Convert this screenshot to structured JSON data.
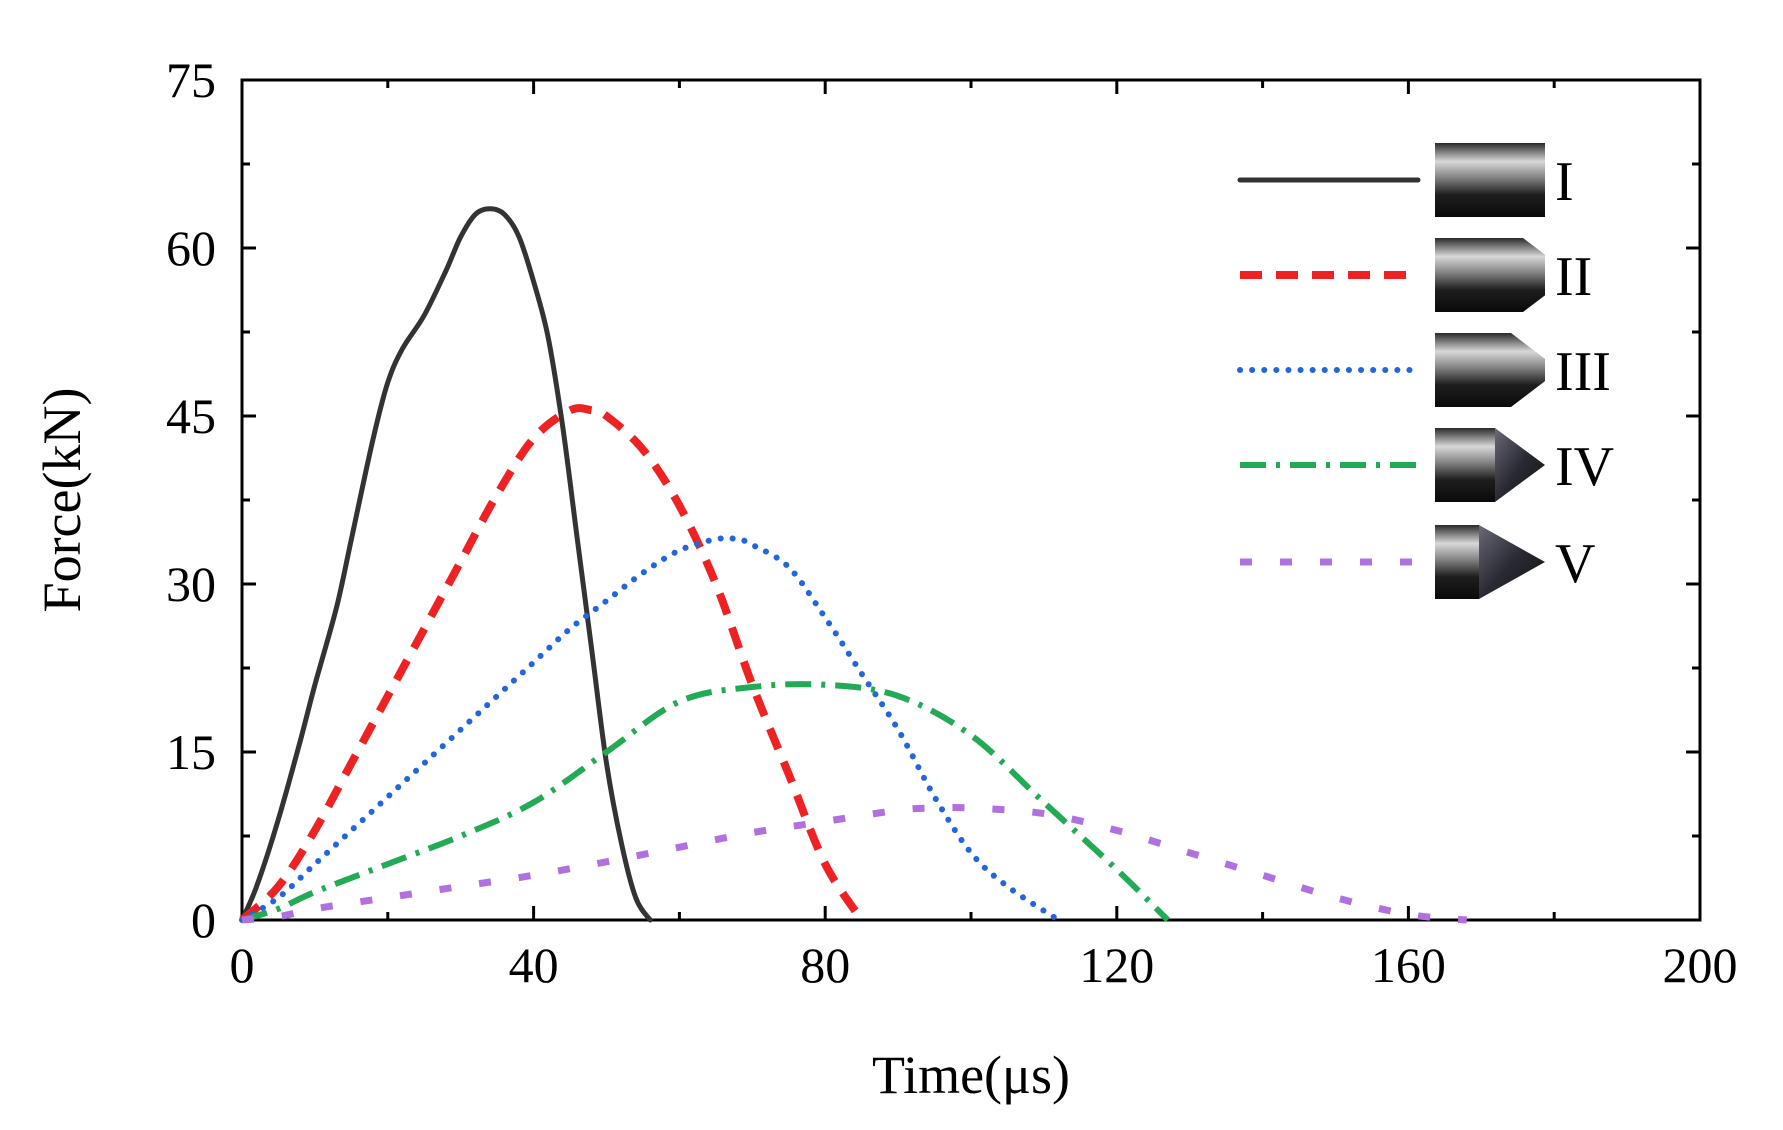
{
  "chart_data": {
    "type": "line",
    "title": "",
    "xlabel": "Time(μs)",
    "ylabel": "Force(kN)",
    "xlim": [
      0,
      200
    ],
    "ylim": [
      0,
      75
    ],
    "xticks": [
      0,
      40,
      80,
      120,
      160,
      200
    ],
    "yticks": [
      0,
      15,
      30,
      45,
      60,
      75
    ],
    "xticklabels": [
      "0",
      "40",
      "80",
      "120",
      "160",
      "200"
    ],
    "yticklabels": [
      "0",
      "15",
      "30",
      "45",
      "60",
      "75"
    ],
    "grid": false,
    "legend_position": "top-right",
    "series": [
      {
        "name": "I",
        "color": "#333333",
        "style": "solid",
        "icon": "flat-nose-projectile-icon",
        "x": [
          0,
          2,
          5,
          8,
          10,
          13,
          15,
          18,
          20,
          22,
          25,
          28,
          30,
          32,
          34,
          36,
          38,
          40,
          42,
          44,
          46,
          48,
          50,
          52,
          54,
          56
        ],
        "y": [
          0,
          3,
          9,
          16,
          21,
          28,
          34,
          43,
          48,
          51,
          54,
          58,
          61,
          63,
          63.5,
          63,
          61,
          57,
          52,
          44,
          34,
          24,
          14,
          7,
          2,
          0
        ]
      },
      {
        "name": "II",
        "color": "#ee2222",
        "style": "dashed",
        "icon": "blunt-cone-projectile-icon",
        "x": [
          0,
          5,
          10,
          15,
          20,
          25,
          30,
          35,
          40,
          45,
          48,
          50,
          55,
          60,
          65,
          70,
          75,
          80,
          85
        ],
        "y": [
          0,
          3,
          8,
          14,
          20,
          26,
          32,
          38,
          43,
          45.5,
          45.5,
          45,
          42,
          37,
          30,
          21,
          13,
          5,
          0
        ]
      },
      {
        "name": "III",
        "color": "#2266dd",
        "style": "dotted",
        "icon": "short-cone-projectile-icon",
        "x": [
          0,
          5,
          10,
          15,
          20,
          25,
          30,
          35,
          40,
          45,
          50,
          55,
          60,
          65,
          68,
          70,
          75,
          80,
          85,
          90,
          95,
          100,
          105,
          112
        ],
        "y": [
          0,
          2,
          5,
          8,
          11,
          14,
          17,
          20,
          23,
          26,
          28.5,
          31,
          33,
          34,
          34,
          33.5,
          31.5,
          27,
          22,
          17,
          11,
          6,
          3,
          0
        ]
      },
      {
        "name": "IV",
        "color": "#22aa55",
        "style": "dashdot",
        "icon": "long-cone-projectile-icon",
        "x": [
          0,
          5,
          10,
          20,
          30,
          40,
          50,
          60,
          70,
          80,
          90,
          100,
          110,
          120,
          127
        ],
        "y": [
          0,
          1,
          2.5,
          5,
          7.5,
          10.5,
          15,
          19.5,
          20.8,
          21,
          20,
          16.5,
          10.5,
          4.5,
          0
        ]
      },
      {
        "name": "V",
        "color": "#b070e0",
        "style": "dashed-short",
        "icon": "pointed-cone-projectile-icon",
        "x": [
          0,
          5,
          10,
          20,
          30,
          40,
          50,
          60,
          70,
          80,
          90,
          95,
          100,
          110,
          120,
          130,
          140,
          150,
          160,
          168
        ],
        "y": [
          0,
          0.3,
          1,
          2,
          3,
          4,
          5.2,
          6.5,
          7.8,
          8.8,
          9.8,
          10,
          10,
          9.5,
          8,
          6,
          4,
          2,
          0.5,
          0
        ]
      }
    ]
  }
}
